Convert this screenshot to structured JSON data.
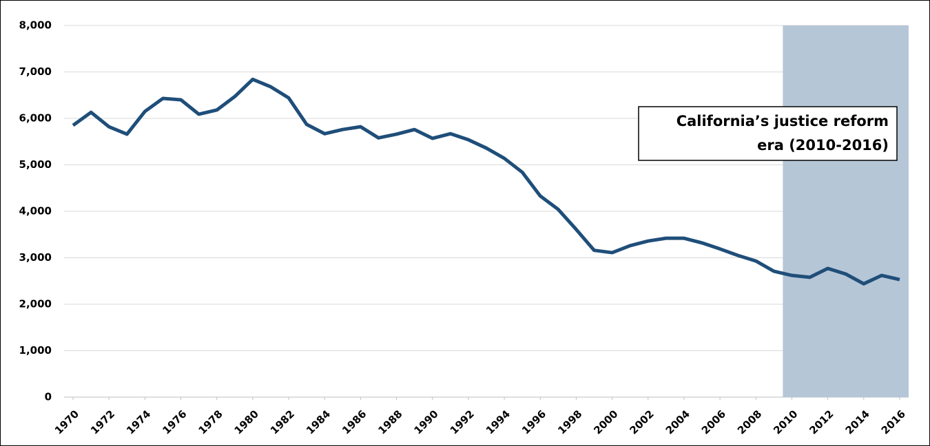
{
  "chart_data": {
    "type": "line",
    "annotation": [
      "California’s justice reform",
      "era (2010-2016)"
    ],
    "shaded_range": [
      2010,
      2016
    ],
    "shade_color": "#b5c6d7",
    "x": [
      1970,
      1971,
      1972,
      1973,
      1974,
      1975,
      1976,
      1977,
      1978,
      1979,
      1980,
      1981,
      1982,
      1983,
      1984,
      1985,
      1986,
      1987,
      1988,
      1989,
      1990,
      1991,
      1992,
      1993,
      1994,
      1995,
      1996,
      1997,
      1998,
      1999,
      2000,
      2001,
      2002,
      2003,
      2004,
      2005,
      2006,
      2007,
      2008,
      2009,
      2010,
      2011,
      2012,
      2013,
      2014,
      2015,
      2016
    ],
    "series": [
      {
        "color": "#1f4e79",
        "values": [
          5850,
          6130,
          5820,
          5660,
          6150,
          6430,
          6400,
          6090,
          6180,
          6470,
          6840,
          6680,
          6440,
          5870,
          5670,
          5760,
          5820,
          5580,
          5660,
          5760,
          5570,
          5670,
          5540,
          5360,
          5140,
          4840,
          4330,
          4040,
          3610,
          3160,
          3110,
          3260,
          3360,
          3420,
          3420,
          3320,
          3190,
          3050,
          2930,
          2710,
          2620,
          2580,
          2770,
          2650,
          2440,
          2620,
          2530
        ]
      }
    ],
    "xlim": [
      1969.5,
      2016.5
    ],
    "xticks": [
      1970,
      1972,
      1974,
      1976,
      1978,
      1980,
      1982,
      1984,
      1986,
      1988,
      1990,
      1992,
      1994,
      1996,
      1998,
      2000,
      2002,
      2004,
      2006,
      2008,
      2010,
      2012,
      2014,
      2016
    ],
    "ylim": [
      0,
      8000
    ],
    "yticks": [
      0,
      {
        "value": 1000,
        "label": "1,000"
      },
      {
        "value": 2000,
        "label": "2,000"
      },
      {
        "value": 3000,
        "label": "3,000"
      },
      {
        "value": 4000,
        "label": "4,000"
      },
      {
        "value": 5000,
        "label": "5,000"
      },
      {
        "value": 6000,
        "label": "6,000"
      },
      {
        "value": 7000,
        "label": "7,000"
      },
      {
        "value": 8000,
        "label": "8,000"
      }
    ],
    "grid": true
  }
}
